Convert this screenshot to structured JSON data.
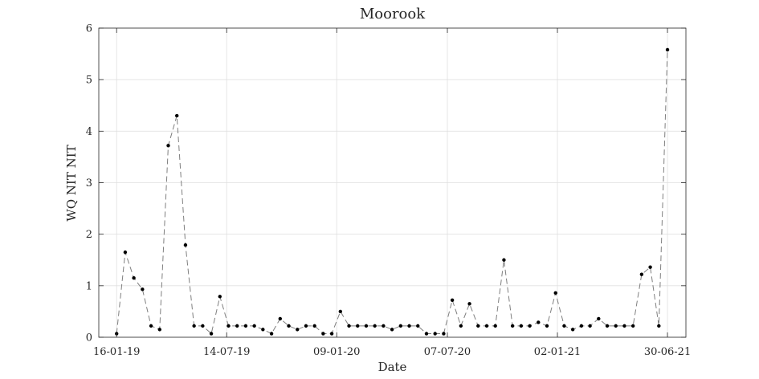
{
  "chart_data": {
    "type": "line",
    "title": "Moorook",
    "xlabel": "Date",
    "ylabel": "WQ NIT NIT",
    "x_tick_labels": [
      "16-01-19",
      "14-07-19",
      "09-01-20",
      "07-07-20",
      "02-01-21",
      "30-06-21"
    ],
    "x_tick_dates": [
      "2019-01-16",
      "2019-07-14",
      "2020-01-09",
      "2020-07-07",
      "2021-01-02",
      "2021-06-30"
    ],
    "xlim": [
      "2018-12-18",
      "2021-07-30"
    ],
    "ylim": [
      0,
      6
    ],
    "y_ticks": [
      0,
      1,
      2,
      3,
      4,
      5,
      6
    ],
    "grid": true,
    "line_style": "dashed",
    "line_color": "#7f7f7f",
    "marker_color": "#000000",
    "series": [
      {
        "x": [
          "2019-01-16",
          "2019-01-30",
          "2019-02-13",
          "2019-02-27",
          "2019-03-13",
          "2019-03-27",
          "2019-04-10",
          "2019-04-24",
          "2019-05-08",
          "2019-05-22",
          "2019-06-05",
          "2019-06-19",
          "2019-07-03",
          "2019-07-17",
          "2019-07-31",
          "2019-08-14",
          "2019-08-28",
          "2019-09-11",
          "2019-09-25",
          "2019-10-09",
          "2019-10-23",
          "2019-11-06",
          "2019-11-20",
          "2019-12-04",
          "2019-12-18",
          "2020-01-01",
          "2020-01-15",
          "2020-01-29",
          "2020-02-12",
          "2020-02-26",
          "2020-03-11",
          "2020-03-25",
          "2020-04-08",
          "2020-04-22",
          "2020-05-06",
          "2020-05-20",
          "2020-06-03",
          "2020-06-17",
          "2020-07-01",
          "2020-07-15",
          "2020-07-29",
          "2020-08-12",
          "2020-08-26",
          "2020-09-09",
          "2020-09-23",
          "2020-10-07",
          "2020-10-21",
          "2020-11-04",
          "2020-11-18",
          "2020-12-02",
          "2020-12-16",
          "2020-12-30",
          "2021-01-13",
          "2021-01-27",
          "2021-02-10",
          "2021-02-24",
          "2021-03-10",
          "2021-03-24",
          "2021-04-07",
          "2021-04-21",
          "2021-05-05",
          "2021-05-19",
          "2021-06-02",
          "2021-06-16",
          "2021-06-30"
        ],
        "y": [
          0.07,
          1.65,
          1.15,
          0.93,
          0.22,
          0.15,
          3.72,
          4.3,
          1.79,
          0.22,
          0.22,
          0.07,
          0.79,
          0.22,
          0.22,
          0.22,
          0.22,
          0.15,
          0.07,
          0.36,
          0.22,
          0.15,
          0.22,
          0.22,
          0.07,
          0.07,
          0.5,
          0.22,
          0.22,
          0.22,
          0.22,
          0.22,
          0.15,
          0.22,
          0.22,
          0.22,
          0.07,
          0.07,
          0.07,
          0.72,
          0.22,
          0.65,
          0.22,
          0.22,
          0.22,
          1.5,
          0.22,
          0.22,
          0.22,
          0.29,
          0.22,
          0.86,
          0.22,
          0.15,
          0.22,
          0.22,
          0.36,
          0.22,
          0.22,
          0.22,
          0.22,
          1.22,
          1.36,
          0.22,
          5.58
        ]
      }
    ]
  }
}
